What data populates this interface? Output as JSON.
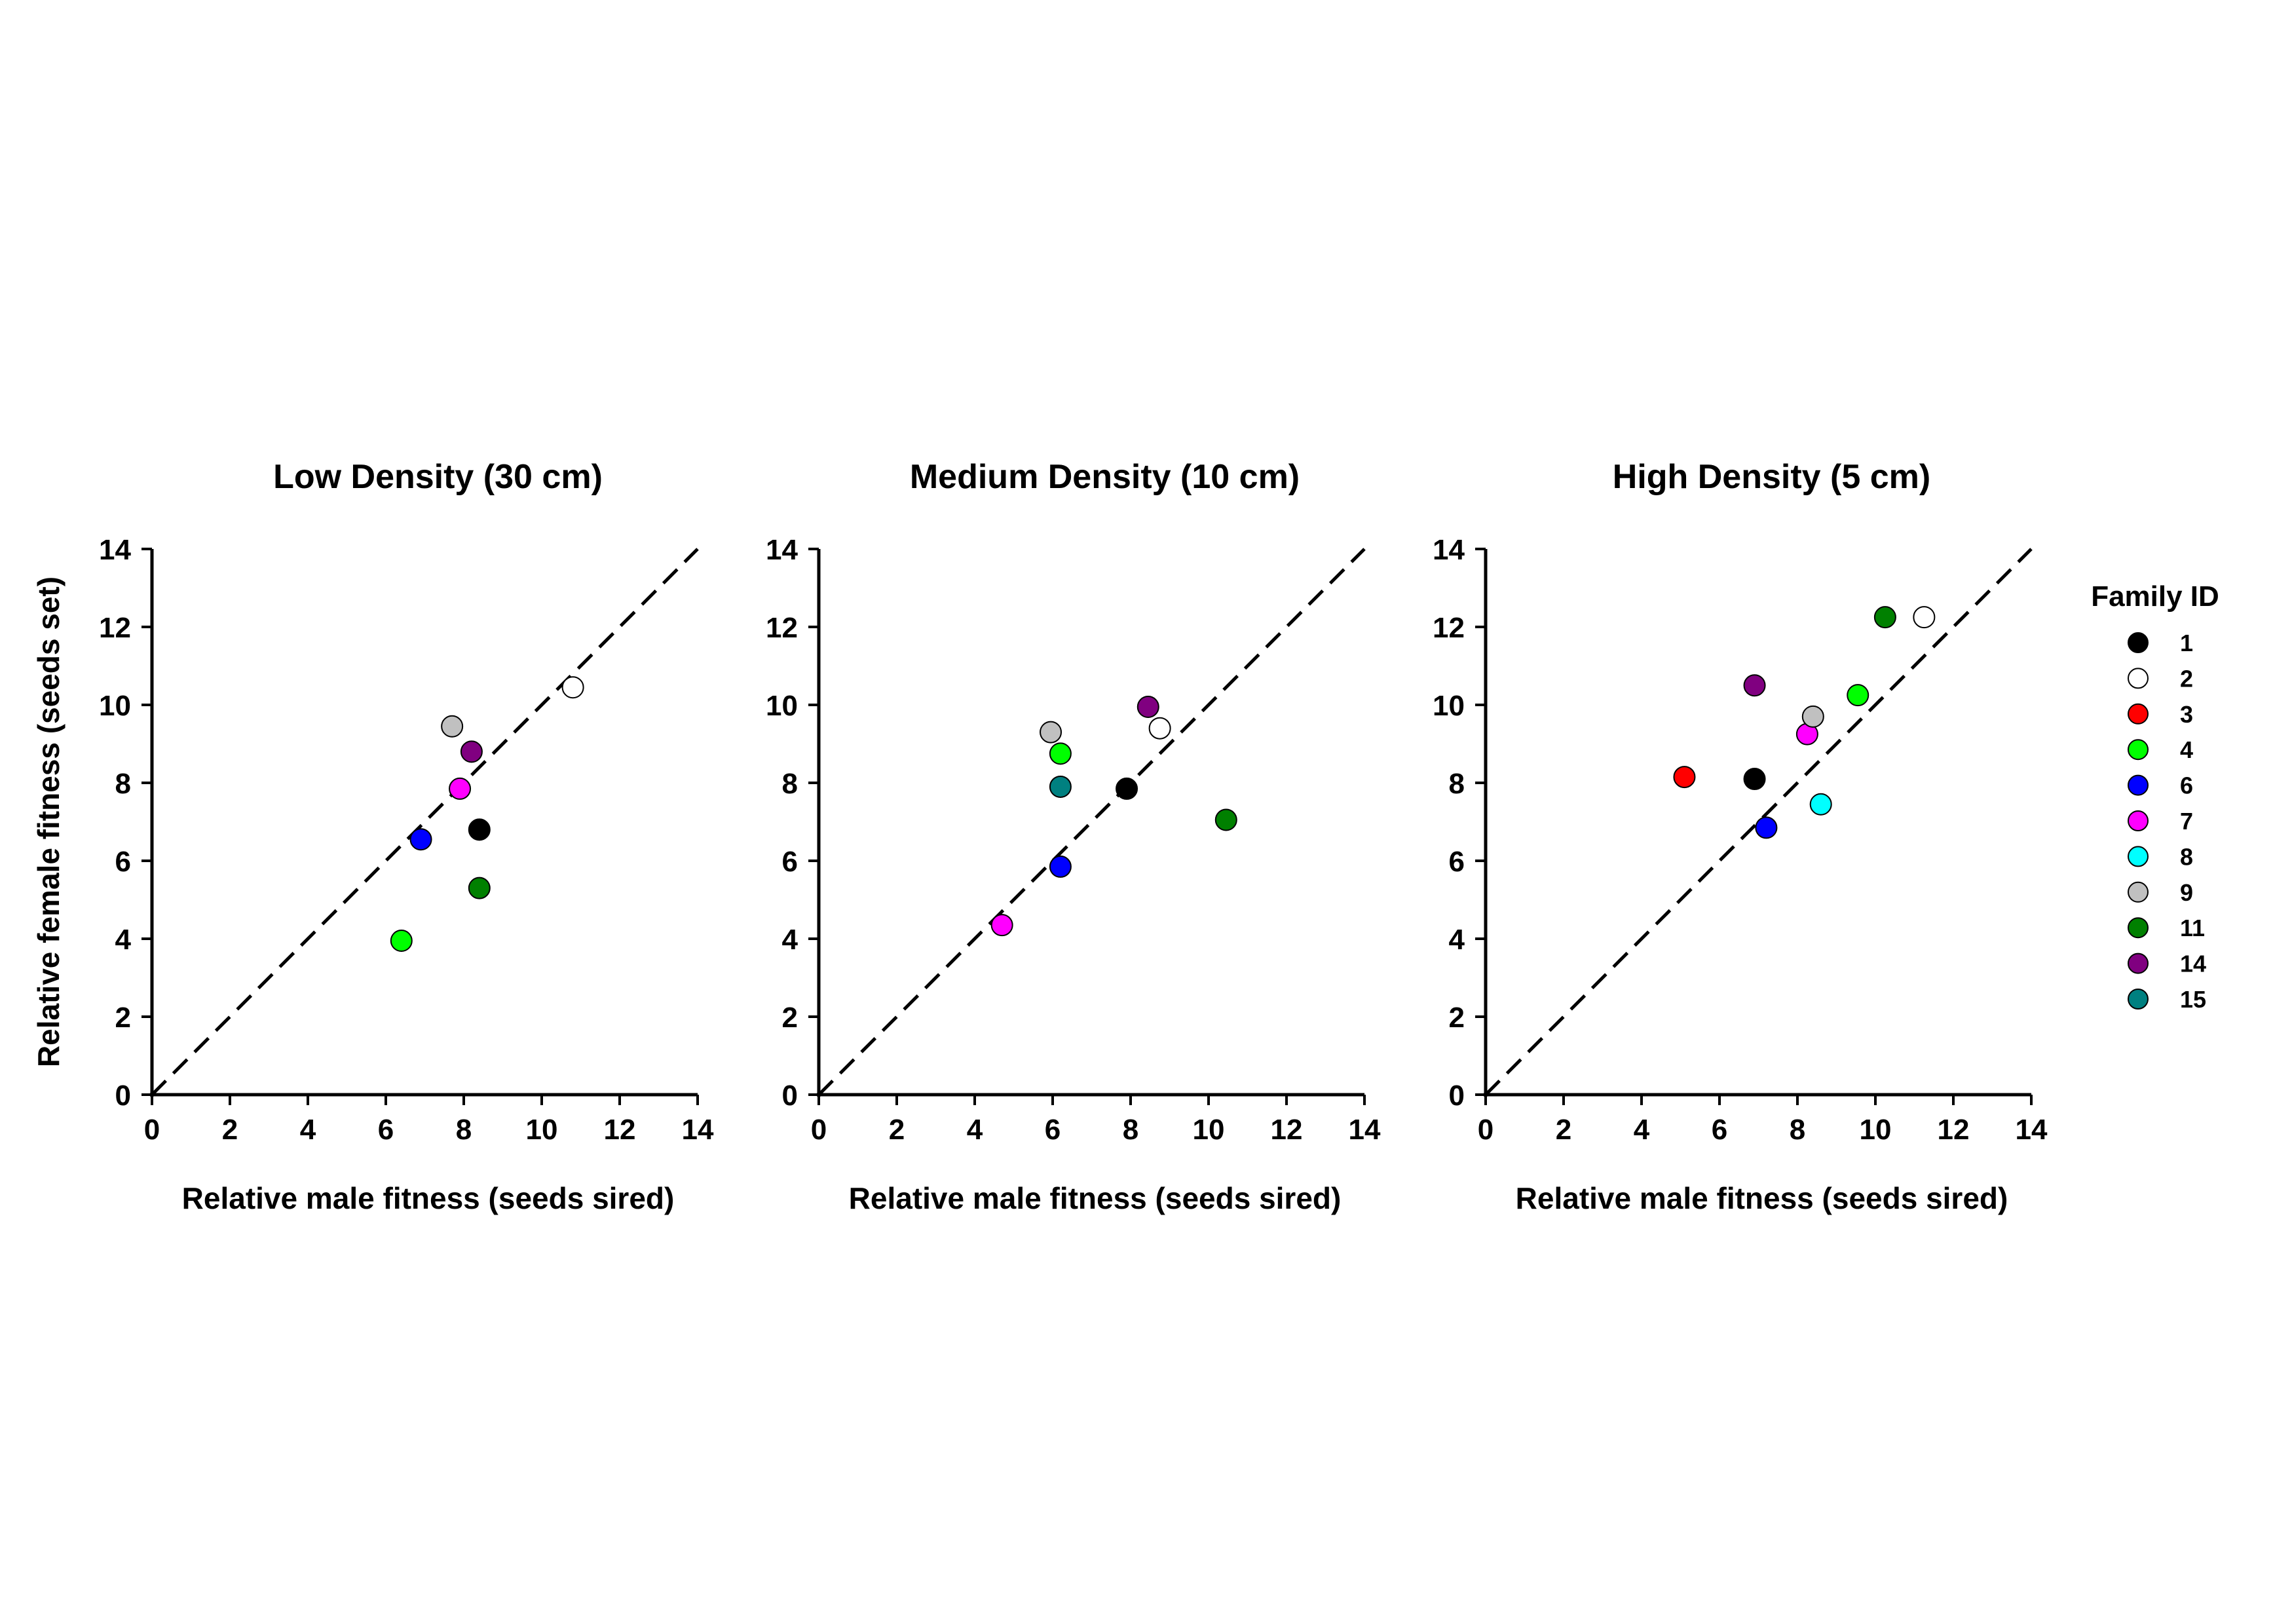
{
  "chart_data": [
    {
      "type": "scatter",
      "title": "Low Density (30 cm)",
      "xlabel": "Relative male fitness (seeds sired)",
      "ylabel": "Relative female fitness (seeds set)",
      "xlim": [
        0,
        14
      ],
      "ylim": [
        0,
        14
      ],
      "xticks": [
        "0",
        "2",
        "4",
        "6",
        "8",
        "10",
        "12",
        "14"
      ],
      "yticks": [
        "0",
        "2",
        "4",
        "6",
        "8",
        "10",
        "12",
        "14"
      ],
      "reference_line": "y = x (dashed)",
      "points": [
        {
          "family": "1",
          "x": 8.4,
          "y": 6.8
        },
        {
          "family": "2",
          "x": 10.8,
          "y": 10.45
        },
        {
          "family": "4",
          "x": 6.4,
          "y": 3.95
        },
        {
          "family": "6",
          "x": 6.9,
          "y": 6.55
        },
        {
          "family": "7",
          "x": 7.9,
          "y": 7.85
        },
        {
          "family": "9",
          "x": 7.7,
          "y": 9.45
        },
        {
          "family": "11",
          "x": 8.4,
          "y": 5.3
        },
        {
          "family": "14",
          "x": 8.2,
          "y": 8.8
        }
      ]
    },
    {
      "type": "scatter",
      "title": "Medium Density (10 cm)",
      "xlabel": "Relative male fitness (seeds sired)",
      "ylabel": "",
      "xlim": [
        0,
        14
      ],
      "ylim": [
        0,
        14
      ],
      "xticks": [
        "0",
        "2",
        "4",
        "6",
        "8",
        "10",
        "12",
        "14"
      ],
      "yticks": [
        "0",
        "2",
        "4",
        "6",
        "8",
        "10",
        "12",
        "14"
      ],
      "reference_line": "y = x (dashed)",
      "points": [
        {
          "family": "1",
          "x": 7.9,
          "y": 7.85
        },
        {
          "family": "2",
          "x": 8.75,
          "y": 9.4
        },
        {
          "family": "4",
          "x": 6.2,
          "y": 8.75
        },
        {
          "family": "6",
          "x": 6.2,
          "y": 5.85
        },
        {
          "family": "7",
          "x": 4.7,
          "y": 4.35
        },
        {
          "family": "9",
          "x": 5.95,
          "y": 9.3
        },
        {
          "family": "11",
          "x": 10.45,
          "y": 7.05
        },
        {
          "family": "14",
          "x": 8.45,
          "y": 9.95
        },
        {
          "family": "15",
          "x": 6.2,
          "y": 7.9
        }
      ]
    },
    {
      "type": "scatter",
      "title": "High Density (5 cm)",
      "xlabel": "Relative male fitness (seeds sired)",
      "ylabel": "",
      "xlim": [
        0,
        14
      ],
      "ylim": [
        0,
        14
      ],
      "xticks": [
        "0",
        "2",
        "4",
        "6",
        "8",
        "10",
        "12",
        "14"
      ],
      "yticks": [
        "0",
        "2",
        "4",
        "6",
        "8",
        "10",
        "12",
        "14"
      ],
      "reference_line": "y = x (dashed)",
      "points": [
        {
          "family": "1",
          "x": 6.9,
          "y": 8.1
        },
        {
          "family": "2",
          "x": 11.25,
          "y": 12.25
        },
        {
          "family": "3",
          "x": 5.1,
          "y": 8.15
        },
        {
          "family": "4",
          "x": 9.55,
          "y": 10.25
        },
        {
          "family": "6",
          "x": 7.2,
          "y": 6.85
        },
        {
          "family": "7",
          "x": 8.25,
          "y": 9.25
        },
        {
          "family": "8",
          "x": 8.6,
          "y": 7.45
        },
        {
          "family": "9",
          "x": 8.4,
          "y": 9.7
        },
        {
          "family": "11",
          "x": 10.25,
          "y": 12.25
        },
        {
          "family": "14",
          "x": 6.9,
          "y": 10.5
        }
      ]
    }
  ],
  "legend": {
    "title": "Family ID",
    "placement": "right",
    "items": [
      {
        "label": "1",
        "color": "#000000"
      },
      {
        "label": "2",
        "color": "#ffffff"
      },
      {
        "label": "3",
        "color": "#ff0000"
      },
      {
        "label": "4",
        "color": "#00ff00"
      },
      {
        "label": "6",
        "color": "#0000ff"
      },
      {
        "label": "7",
        "color": "#ff00ff"
      },
      {
        "label": "8",
        "color": "#00ffff"
      },
      {
        "label": "9",
        "color": "#c0c0c0"
      },
      {
        "label": "11",
        "color": "#008000"
      },
      {
        "label": "14",
        "color": "#800080"
      },
      {
        "label": "15",
        "color": "#008080"
      }
    ]
  }
}
